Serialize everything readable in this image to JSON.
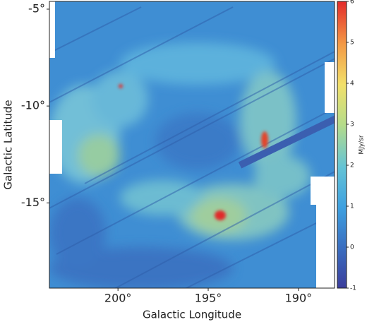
{
  "chart_data": {
    "type": "image",
    "xlabel": "Galactic Longitude",
    "ylabel": "Galactic Latitude",
    "xlim": [
      203.8,
      188.0
    ],
    "xticks": [
      {
        "value": 200,
        "label": "200°"
      },
      {
        "value": 195,
        "label": "195°"
      },
      {
        "value": 190,
        "label": "190°"
      }
    ],
    "ylim": [
      -19.4,
      -4.6
    ],
    "yticks": [
      {
        "value": -5,
        "label": "-5°"
      },
      {
        "value": -10,
        "label": "-10°"
      },
      {
        "value": -15,
        "label": "-15°"
      }
    ],
    "colorbar": {
      "label": "MJy/sr",
      "lim": [
        -1,
        6
      ],
      "ticks": [
        -1,
        0,
        1,
        2,
        3,
        4,
        5,
        6
      ]
    }
  }
}
